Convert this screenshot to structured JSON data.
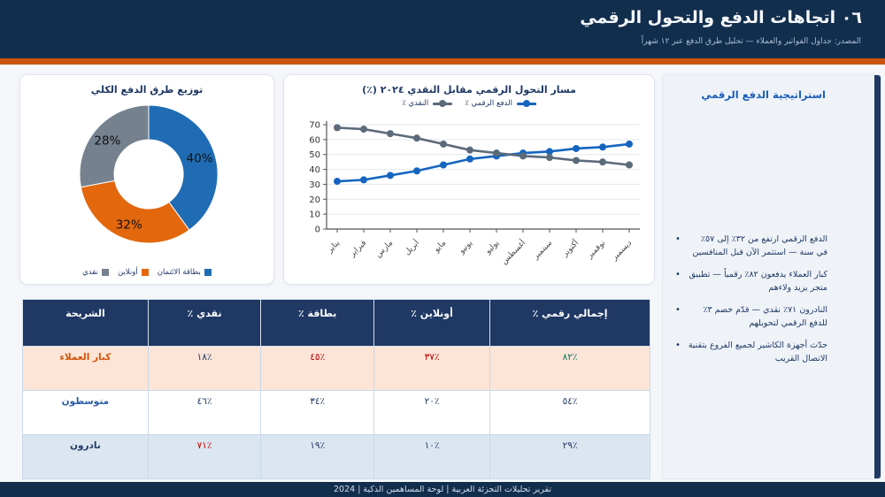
{
  "colors": {
    "header_bg": "#122e4d",
    "accent_orange": "#c9530a",
    "navy": "#1f3864",
    "red": "#c00000",
    "green": "#0e7a5f",
    "sidebar_title_blue": "#1b5cb8",
    "row_highlight": "#fce4d6",
    "row_alt": "#dce6f1"
  },
  "header": {
    "title": "٠٦ اتجاهات الدفع والتحول الرقمي",
    "subtitle": "المصدر: جداول الفواتير والعملاء — تحليل طرق الدفع عبر ١٢ شهراً"
  },
  "sidebar": {
    "title": "استراتيجية الدفع الرقمي",
    "bullets": [
      "الدفع الرقمي ارتفع من ٣٢٪ إلى ٥٧٪ في سنة — استثمر الآن قبل المنافسين",
      "كبار العملاء يدفعون ٨٢٪ رقمياً — تطبيق متجر يزيد ولاءهم",
      "النادرون ٧١٪ نقدي — قدّم خصم ٣٪ للدفع الرقمي لتحويلهم",
      "حدّث أجهزة الكاشير لجميع الفروع بتقنية الاتصال القريب"
    ]
  },
  "chart_data": [
    {
      "type": "pie",
      "title": "توزيع طرق الدفع الكلي",
      "donut": true,
      "segments": [
        {
          "label": "بطاقة الائتمان",
          "value": 40,
          "display": "40%",
          "color": "#1f6cb4"
        },
        {
          "label": "أونلاين",
          "value": 32,
          "display": "32%",
          "color": "#e3670d"
        },
        {
          "label": "نقدي",
          "value": 28,
          "display": "28%",
          "color": "#75818e"
        }
      ],
      "legend_position": "bottom"
    },
    {
      "type": "line",
      "title": "مسار التحول الرقمي مقابل النقدي ٢٠٢٤ (٪)",
      "categories": [
        "يناير",
        "فبراير",
        "مارس",
        "أبريل",
        "مايو",
        "يونيو",
        "يوليو",
        "أغسطس",
        "سبتمبر",
        "أكتوبر",
        "نوفمبر",
        "ديسمبر"
      ],
      "series": [
        {
          "name": "الدفع الرقمي ٪",
          "color": "#1565c0",
          "values": [
            32,
            33,
            36,
            39,
            43,
            47,
            49,
            51,
            52,
            54,
            55,
            57
          ]
        },
        {
          "name": "النقدي ٪",
          "color": "#5c6b7a",
          "values": [
            68,
            67,
            64,
            61,
            57,
            53,
            51,
            49,
            48,
            46,
            45,
            43
          ]
        }
      ],
      "ylim": [
        0,
        70
      ],
      "yticks": [
        0,
        10,
        20,
        30,
        40,
        50,
        60,
        70
      ],
      "grid": true,
      "legend_position": "top"
    }
  ],
  "table": {
    "headers": [
      "الشريحة",
      "نقدي ٪",
      "بطاقة ٪",
      "أونلاين ٪",
      "إجمالي رقمي ٪"
    ],
    "col_widths": [
      "20%",
      "18%",
      "18%",
      "18.5%",
      "25.5%"
    ],
    "rows": [
      {
        "label": "كبار العملاء",
        "label_color": "#d3540a",
        "bg": "#fce4d6",
        "values": [
          {
            "t": "١٨٪",
            "c": "#1f3864"
          },
          {
            "t": "٤٥٪",
            "c": "#c00000"
          },
          {
            "t": "٣٧٪",
            "c": "#c00000"
          },
          {
            "t": "٨٢٪",
            "c": "#0e7a5f"
          }
        ]
      },
      {
        "label": "متوسطون",
        "label_color": "#2a5ca8",
        "bg": "#ffffff",
        "values": [
          {
            "t": "٤٦٪",
            "c": "#1f3864"
          },
          {
            "t": "٣٤٪",
            "c": "#1f3864"
          },
          {
            "t": "٢٠٪",
            "c": "#1f3864"
          },
          {
            "t": "٥٤٪",
            "c": "#1f3864"
          }
        ]
      },
      {
        "label": "نادرون",
        "label_color": "#1f3864",
        "bg": "#dce6f1",
        "values": [
          {
            "t": "٧١٪",
            "c": "#c00000"
          },
          {
            "t": "١٩٪",
            "c": "#1f3864"
          },
          {
            "t": "١٠٪",
            "c": "#1f3864"
          },
          {
            "t": "٢٩٪",
            "c": "#1f3864"
          }
        ]
      }
    ]
  },
  "footer": {
    "text": "تقرير تحليلات التجزئة العربية  |  لوحة المساهمين الذكية  |  2024"
  }
}
